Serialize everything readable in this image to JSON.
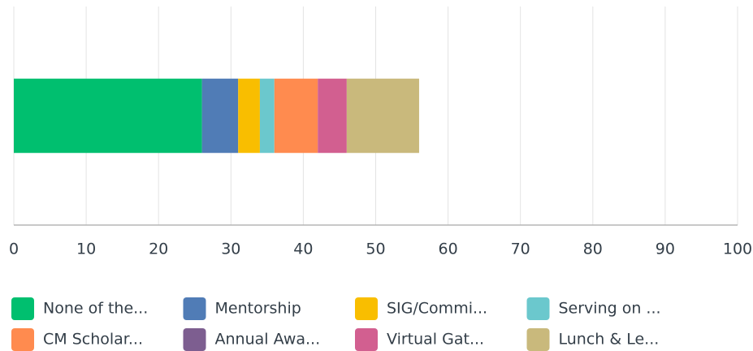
{
  "chart_data": {
    "type": "stacked_barh",
    "categories": [
      null
    ],
    "series": [
      {
        "name": "None of the...",
        "color": "#00bf6f",
        "values": [
          26
        ]
      },
      {
        "name": "Mentorship",
        "color": "#507cb6",
        "values": [
          5
        ]
      },
      {
        "name": "SIG/Commi...",
        "color": "#f9be00",
        "values": [
          3
        ]
      },
      {
        "name": "Serving on ...",
        "color": "#6bc8cd",
        "values": [
          2
        ]
      },
      {
        "name": "CM Scholar...",
        "color": "#ff8b4f",
        "values": [
          6
        ]
      },
      {
        "name": "Annual Awa...",
        "color": "#7d5e90",
        "values": [
          0
        ]
      },
      {
        "name": "Virtual Gat...",
        "color": "#d25f90",
        "values": [
          4
        ]
      },
      {
        "name": "Lunch & Le...",
        "color": "#c9b97c",
        "values": [
          10
        ]
      }
    ],
    "xlim": [
      0,
      100
    ],
    "xticks": [
      0,
      10,
      20,
      30,
      40,
      50,
      60,
      70,
      80,
      90,
      100
    ],
    "grid": true,
    "legend": "bottom"
  }
}
